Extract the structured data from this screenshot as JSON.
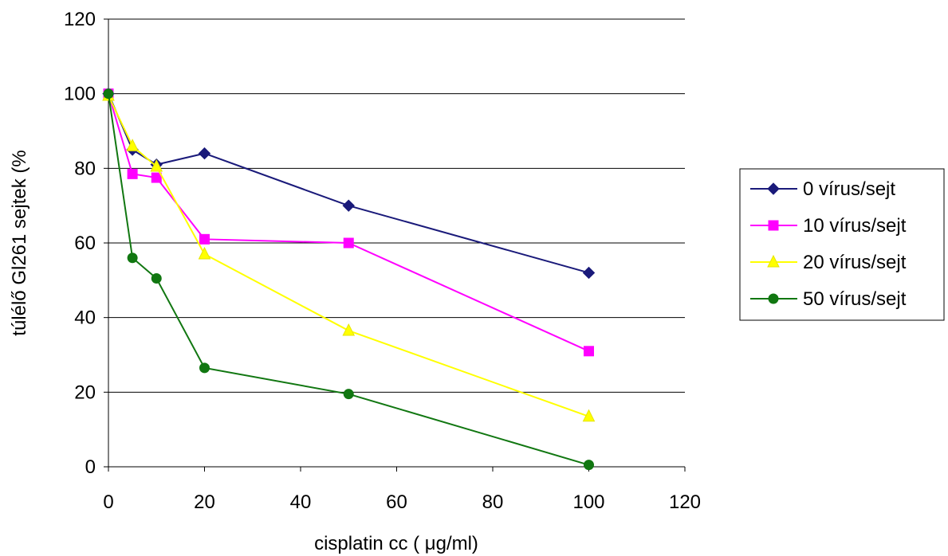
{
  "chart_data": {
    "type": "line",
    "title": "",
    "xlabel": "cisplatin cc ( μg/ml)",
    "ylabel": "túlélő Gl261 sejtek (%",
    "xlim": [
      0,
      120
    ],
    "ylim": [
      0,
      120
    ],
    "x_ticks": [
      0,
      20,
      40,
      60,
      80,
      100,
      120
    ],
    "y_ticks": [
      0,
      20,
      40,
      60,
      80,
      100,
      120
    ],
    "grid": "horizontal",
    "legend_position": "right",
    "x": [
      0,
      5,
      10,
      20,
      50,
      100
    ],
    "series": [
      {
        "name": "0 vírus/sejt",
        "marker": "diamond",
        "color": "#1a1a7a",
        "values": [
          100,
          85,
          81,
          84,
          70,
          52
        ]
      },
      {
        "name": "10 vírus/sejt",
        "marker": "square",
        "color": "#ff00ff",
        "values": [
          100,
          78.5,
          77.5,
          61,
          60,
          31
        ]
      },
      {
        "name": "20 vírus/sejt",
        "marker": "triangle",
        "color": "#ffff00",
        "values": [
          99.5,
          86,
          80.5,
          57,
          36.5,
          13.5
        ]
      },
      {
        "name": "50 vírus/sejt",
        "marker": "circle",
        "color": "#117711",
        "values": [
          100,
          56,
          50.5,
          26.5,
          19.5,
          0.5
        ]
      }
    ]
  }
}
